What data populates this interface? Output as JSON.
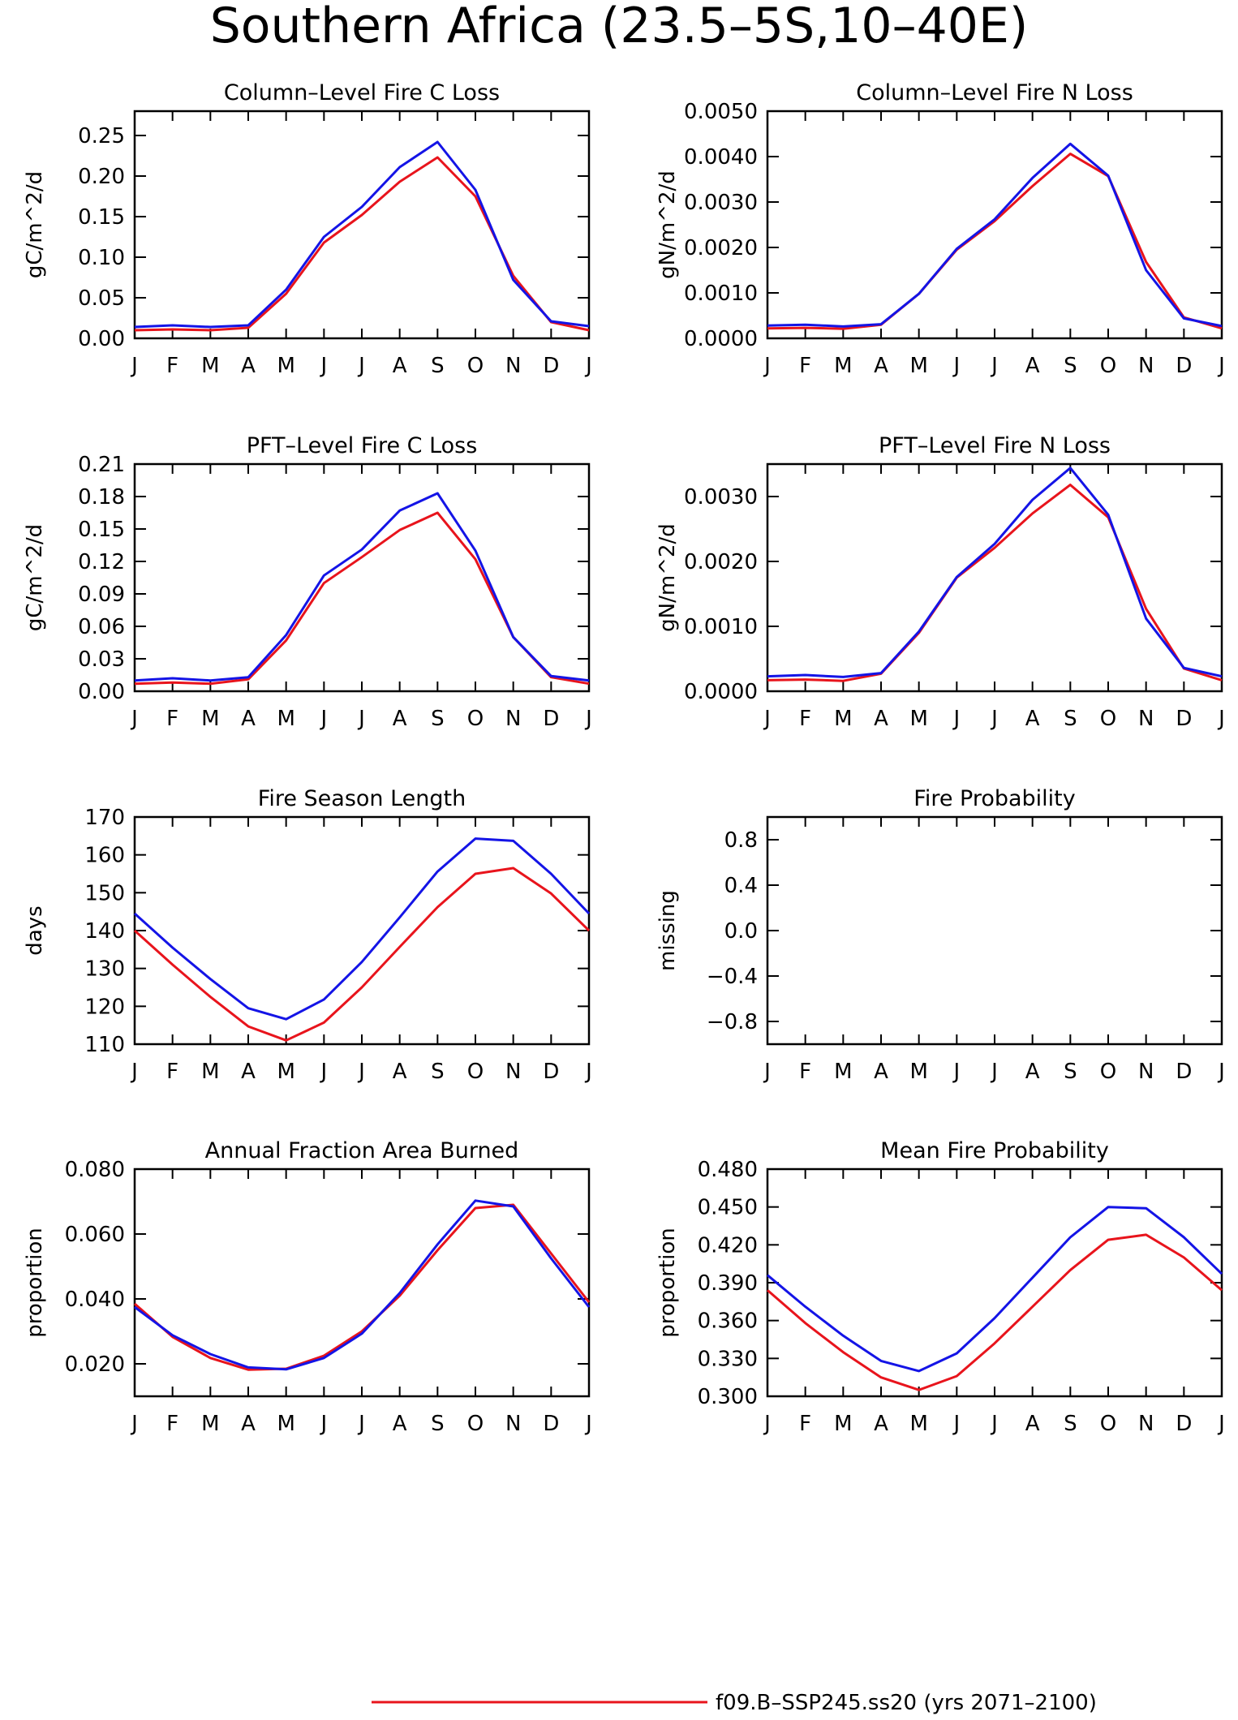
{
  "figure": {
    "title": "Southern Africa (23.5–5S,10–40E)"
  },
  "colors": {
    "series_1": "#e8141c",
    "series_2": "#1414e6",
    "axis": "#000000"
  },
  "legend": {
    "entries": [
      {
        "label": "f09.B–SSP245.ss20 (yrs 2071–2100)",
        "color": "#e8141c"
      }
    ]
  },
  "chart_data": [
    {
      "type": "line",
      "title": "Column–Level Fire C Loss",
      "ylabel": "gC/m^2/d",
      "categories": [
        "J",
        "F",
        "M",
        "A",
        "M",
        "J",
        "J",
        "A",
        "S",
        "O",
        "N",
        "D",
        "J"
      ],
      "ylim": [
        0,
        0.28
      ],
      "yticks": [
        "0.00",
        "0.05",
        "0.10",
        "0.15",
        "0.20",
        "0.25"
      ],
      "series": [
        {
          "color": "#e8141c",
          "values": [
            0.01,
            0.011,
            0.01,
            0.013,
            0.055,
            0.118,
            0.152,
            0.193,
            0.223,
            0.175,
            0.077,
            0.02,
            0.01
          ]
        },
        {
          "color": "#1414e6",
          "values": [
            0.014,
            0.016,
            0.014,
            0.016,
            0.06,
            0.125,
            0.162,
            0.211,
            0.242,
            0.183,
            0.072,
            0.021,
            0.015
          ]
        }
      ]
    },
    {
      "type": "line",
      "title": "Column–Level Fire N Loss",
      "ylabel": "gN/m^2/d",
      "categories": [
        "J",
        "F",
        "M",
        "A",
        "M",
        "J",
        "J",
        "A",
        "S",
        "O",
        "N",
        "D",
        "J"
      ],
      "ylim": [
        0,
        0.005
      ],
      "yticks": [
        "0.0000",
        "0.0010",
        "0.0020",
        "0.0030",
        "0.0040",
        "0.0050"
      ],
      "series": [
        {
          "color": "#e8141c",
          "values": [
            0.00022,
            0.00023,
            0.00021,
            0.0003,
            0.00098,
            0.00195,
            0.00258,
            0.00335,
            0.00406,
            0.00357,
            0.00168,
            0.00046,
            0.00022
          ]
        },
        {
          "color": "#1414e6",
          "values": [
            0.00028,
            0.0003,
            0.00026,
            0.00031,
            0.00098,
            0.00197,
            0.00262,
            0.00353,
            0.00428,
            0.00358,
            0.0015,
            0.00044,
            0.00027
          ]
        }
      ]
    },
    {
      "type": "line",
      "title": "PFT–Level Fire C Loss",
      "ylabel": "gC/m^2/d",
      "categories": [
        "J",
        "F",
        "M",
        "A",
        "M",
        "J",
        "J",
        "A",
        "S",
        "O",
        "N",
        "D",
        "J"
      ],
      "ylim": [
        0,
        0.21
      ],
      "yticks": [
        "0.00",
        "0.03",
        "0.06",
        "0.09",
        "0.12",
        "0.15",
        "0.18",
        "0.21"
      ],
      "series": [
        {
          "color": "#e8141c",
          "values": [
            0.007,
            0.008,
            0.007,
            0.011,
            0.047,
            0.1,
            0.124,
            0.149,
            0.165,
            0.122,
            0.05,
            0.013,
            0.007
          ]
        },
        {
          "color": "#1414e6",
          "values": [
            0.01,
            0.012,
            0.01,
            0.013,
            0.052,
            0.107,
            0.131,
            0.167,
            0.183,
            0.13,
            0.05,
            0.014,
            0.01
          ]
        }
      ]
    },
    {
      "type": "line",
      "title": "PFT–Level Fire N Loss",
      "ylabel": "gN/m^2/d",
      "categories": [
        "J",
        "F",
        "M",
        "A",
        "M",
        "J",
        "J",
        "A",
        "S",
        "O",
        "N",
        "D",
        "J"
      ],
      "ylim": [
        0,
        0.0035
      ],
      "yticks": [
        "0.0000",
        "0.0010",
        "0.0020",
        "0.0030"
      ],
      "series": [
        {
          "color": "#e8141c",
          "values": [
            0.00017,
            0.00018,
            0.00016,
            0.00027,
            0.0009,
            0.00175,
            0.00221,
            0.00274,
            0.00318,
            0.00268,
            0.00127,
            0.00035,
            0.00017
          ]
        },
        {
          "color": "#1414e6",
          "values": [
            0.00023,
            0.00025,
            0.00022,
            0.00028,
            0.00092,
            0.00176,
            0.00227,
            0.00295,
            0.00344,
            0.00272,
            0.00112,
            0.00036,
            0.00023
          ]
        }
      ]
    },
    {
      "type": "line",
      "title": "Fire Season Length",
      "ylabel": "days",
      "categories": [
        "J",
        "F",
        "M",
        "A",
        "M",
        "J",
        "J",
        "A",
        "S",
        "O",
        "N",
        "D",
        "J"
      ],
      "ylim": [
        110,
        170
      ],
      "yticks": [
        "110",
        "120",
        "130",
        "140",
        "150",
        "160",
        "170"
      ],
      "series": [
        {
          "color": "#e8141c",
          "values": [
            140,
            131,
            122.5,
            114.7,
            111,
            115.7,
            125,
            135.7,
            146.2,
            155,
            156.5,
            149.8,
            140
          ]
        },
        {
          "color": "#1414e6",
          "values": [
            144.5,
            135.5,
            127.2,
            119.5,
            116.6,
            121.8,
            131.7,
            143.5,
            155.6,
            164.3,
            163.7,
            155,
            144.5
          ]
        }
      ]
    },
    {
      "type": "line",
      "title": "Fire Probability",
      "ylabel": "missing",
      "categories": [
        "J",
        "F",
        "M",
        "A",
        "M",
        "J",
        "J",
        "A",
        "S",
        "O",
        "N",
        "D",
        "J"
      ],
      "ylim": [
        -1,
        1
      ],
      "yticks": [
        "−0.8",
        "−0.4",
        "0.0",
        "0.4",
        "0.8"
      ],
      "series": []
    },
    {
      "type": "line",
      "title": "Annual Fraction Area Burned",
      "ylabel": "proportion",
      "categories": [
        "J",
        "F",
        "M",
        "A",
        "M",
        "J",
        "J",
        "A",
        "S",
        "O",
        "N",
        "D",
        "J"
      ],
      "ylim": [
        0.01,
        0.08
      ],
      "yticks": [
        "0.020",
        "0.040",
        "0.060",
        "0.080"
      ],
      "series": [
        {
          "color": "#e8141c",
          "values": [
            0.0385,
            0.0283,
            0.0218,
            0.0182,
            0.0185,
            0.0225,
            0.03,
            0.041,
            0.055,
            0.068,
            0.069,
            0.054,
            0.039
          ]
        },
        {
          "color": "#1414e6",
          "values": [
            0.0375,
            0.0288,
            0.023,
            0.0189,
            0.0183,
            0.0218,
            0.0293,
            0.0418,
            0.0568,
            0.0703,
            0.0685,
            0.0525,
            0.0375
          ]
        }
      ]
    },
    {
      "type": "line",
      "title": "Mean Fire Probability",
      "ylabel": "proportion",
      "categories": [
        "J",
        "F",
        "M",
        "A",
        "M",
        "J",
        "J",
        "A",
        "S",
        "O",
        "N",
        "D",
        "J"
      ],
      "ylim": [
        0.3,
        0.48
      ],
      "yticks": [
        "0.300",
        "0.330",
        "0.360",
        "0.390",
        "0.420",
        "0.450",
        "0.480"
      ],
      "series": [
        {
          "color": "#e8141c",
          "values": [
            0.384,
            0.358,
            0.335,
            0.315,
            0.305,
            0.316,
            0.342,
            0.371,
            0.4,
            0.424,
            0.428,
            0.41,
            0.384
          ]
        },
        {
          "color": "#1414e6",
          "values": [
            0.396,
            0.371,
            0.348,
            0.328,
            0.32,
            0.334,
            0.362,
            0.394,
            0.426,
            0.45,
            0.449,
            0.426,
            0.397
          ]
        }
      ]
    }
  ]
}
